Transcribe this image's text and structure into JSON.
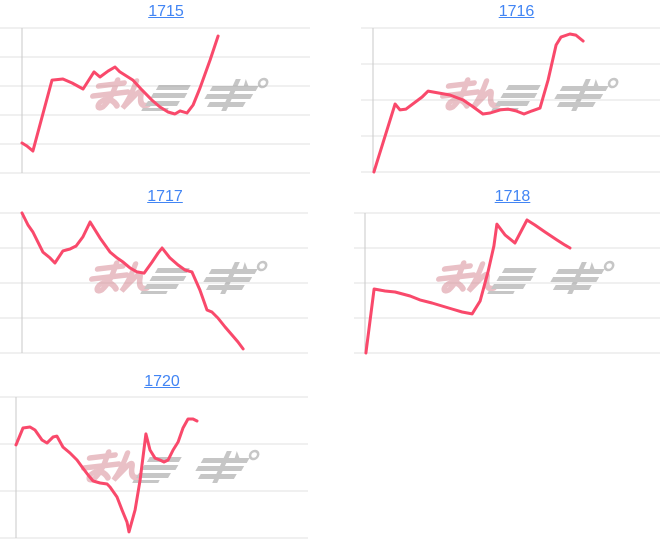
{
  "page": {
    "background": "#ffffff"
  },
  "colors": {
    "line": "#f9496b",
    "gridline": "#e2e2e2",
    "axis": "#c9c9c9",
    "link": "#4285f4",
    "watermark_pink": "#d4838e",
    "watermark_gray": "#8f8f8f"
  },
  "watermark": {
    "text": "みんレポ",
    "opacity": 0.5
  },
  "chart_data": [
    {
      "type": "line",
      "title": "1715",
      "xlabel": "",
      "ylabel": "",
      "axis_tick_labels": [],
      "h_gridlines": 6,
      "legend": "none",
      "series_pct": [
        [
          0,
          79.3
        ],
        [
          1.7,
          81.4
        ],
        [
          3.8,
          84.8
        ],
        [
          10.4,
          35.9
        ],
        [
          14.2,
          35.2
        ],
        [
          17.4,
          37.9
        ],
        [
          21.2,
          42.1
        ],
        [
          25,
          30.3
        ],
        [
          27.1,
          33.8
        ],
        [
          29.9,
          29.7
        ],
        [
          32.3,
          26.9
        ],
        [
          34,
          30.3
        ],
        [
          38.5,
          35.9
        ],
        [
          41.7,
          42.8
        ],
        [
          45.1,
          49.7
        ],
        [
          47.9,
          54.5
        ],
        [
          50.7,
          57.9
        ],
        [
          53.1,
          59.3
        ],
        [
          54.9,
          57.2
        ],
        [
          57.3,
          58.6
        ],
        [
          59.4,
          53.1
        ],
        [
          61.8,
          41.4
        ],
        [
          65.3,
          22.1
        ],
        [
          68.1,
          5.5
        ]
      ]
    },
    {
      "type": "line",
      "title": "1716",
      "xlabel": "",
      "ylabel": "",
      "axis_tick_labels": [],
      "h_gridlines": 5,
      "legend": "none",
      "series_pct": [
        [
          0.3,
          100
        ],
        [
          7.7,
          52.8
        ],
        [
          9.4,
          56.9
        ],
        [
          11.5,
          56.3
        ],
        [
          17.1,
          47.9
        ],
        [
          19.2,
          43.8
        ],
        [
          22.6,
          45.1
        ],
        [
          26.8,
          46.5
        ],
        [
          31.4,
          50
        ],
        [
          34.5,
          54.2
        ],
        [
          38.3,
          59.7
        ],
        [
          40.8,
          59
        ],
        [
          44.3,
          56.9
        ],
        [
          47,
          56.3
        ],
        [
          49.8,
          57.6
        ],
        [
          52.6,
          59.7
        ],
        [
          55.4,
          57.6
        ],
        [
          58.2,
          55.6
        ],
        [
          61,
          36.1
        ],
        [
          63.8,
          11.8
        ],
        [
          65.5,
          6.3
        ],
        [
          68.6,
          4.2
        ],
        [
          70.7,
          4.9
        ],
        [
          73.2,
          9
        ]
      ]
    },
    {
      "type": "line",
      "title": "1717",
      "xlabel": "",
      "ylabel": "",
      "axis_tick_labels": [],
      "h_gridlines": 5,
      "legend": "none",
      "series_pct": [
        [
          0,
          0
        ],
        [
          2.1,
          8.6
        ],
        [
          3.8,
          13.6
        ],
        [
          7.3,
          27.9
        ],
        [
          9.8,
          32.1
        ],
        [
          11.5,
          35.7
        ],
        [
          14.3,
          27.1
        ],
        [
          16.8,
          25.7
        ],
        [
          18.9,
          23.6
        ],
        [
          21.3,
          17.1
        ],
        [
          23.8,
          6.4
        ],
        [
          27.3,
          17.9
        ],
        [
          30.8,
          27.9
        ],
        [
          33.2,
          32.1
        ],
        [
          35.3,
          35
        ],
        [
          37.8,
          39.3
        ],
        [
          40.2,
          42.1
        ],
        [
          42.7,
          42.9
        ],
        [
          45.5,
          35
        ],
        [
          47.6,
          28.6
        ],
        [
          49,
          25
        ],
        [
          51.7,
          32.1
        ],
        [
          54.5,
          37.1
        ],
        [
          57,
          40.7
        ],
        [
          59.4,
          42.1
        ],
        [
          62.2,
          55
        ],
        [
          64.7,
          69.3
        ],
        [
          66.4,
          70.7
        ],
        [
          68.5,
          75
        ],
        [
          71,
          81.4
        ],
        [
          73.4,
          87.1
        ],
        [
          75.5,
          92.1
        ],
        [
          77.3,
          97.1
        ]
      ]
    },
    {
      "type": "line",
      "title": "1718",
      "xlabel": "",
      "ylabel": "",
      "axis_tick_labels": [],
      "h_gridlines": 5,
      "legend": "none",
      "series_pct": [
        [
          0.3,
          100
        ],
        [
          3.1,
          54.3
        ],
        [
          6.8,
          55.7
        ],
        [
          10.2,
          56.4
        ],
        [
          15.3,
          59.3
        ],
        [
          18.6,
          62.1
        ],
        [
          22.7,
          64.3
        ],
        [
          26.1,
          66.4
        ],
        [
          29.5,
          68.6
        ],
        [
          32.9,
          70.7
        ],
        [
          36.3,
          72.1
        ],
        [
          39,
          62.9
        ],
        [
          41.7,
          42.1
        ],
        [
          43.7,
          23.6
        ],
        [
          44.7,
          7.9
        ],
        [
          47.5,
          15.7
        ],
        [
          50.8,
          21.4
        ],
        [
          54.9,
          5
        ],
        [
          57.6,
          8.6
        ],
        [
          61,
          13.6
        ],
        [
          65.1,
          19.3
        ],
        [
          67.8,
          22.9
        ],
        [
          69.5,
          25
        ]
      ]
    },
    {
      "type": "line",
      "title": "1720",
      "xlabel": "",
      "ylabel": "",
      "axis_tick_labels": [],
      "h_gridlines": 4,
      "legend": "none",
      "series_pct": [
        [
          0,
          34
        ],
        [
          2.4,
          22
        ],
        [
          4.8,
          21.3
        ],
        [
          6.5,
          23.4
        ],
        [
          8.9,
          30.5
        ],
        [
          10.6,
          32.6
        ],
        [
          12.7,
          28.4
        ],
        [
          14,
          27.7
        ],
        [
          16.1,
          35.5
        ],
        [
          18.5,
          39.7
        ],
        [
          20.9,
          44.7
        ],
        [
          22.9,
          50.4
        ],
        [
          24.7,
          55.3
        ],
        [
          26.4,
          59.6
        ],
        [
          28.8,
          61
        ],
        [
          31.2,
          61.7
        ],
        [
          32.2,
          63.8
        ],
        [
          34.6,
          70.9
        ],
        [
          36.3,
          80.1
        ],
        [
          38,
          88.7
        ],
        [
          38.7,
          95.7
        ],
        [
          40.8,
          80.1
        ],
        [
          42.5,
          58.9
        ],
        [
          43.8,
          37.6
        ],
        [
          44.5,
          26.2
        ],
        [
          45.9,
          37.6
        ],
        [
          47.6,
          43.3
        ],
        [
          49.3,
          44.7
        ],
        [
          50.7,
          46.1
        ],
        [
          52.1,
          44.7
        ],
        [
          53.8,
          37.6
        ],
        [
          55.5,
          31.9
        ],
        [
          57.2,
          22
        ],
        [
          58.9,
          15.6
        ],
        [
          60.6,
          15.6
        ],
        [
          62,
          17
        ]
      ]
    }
  ]
}
